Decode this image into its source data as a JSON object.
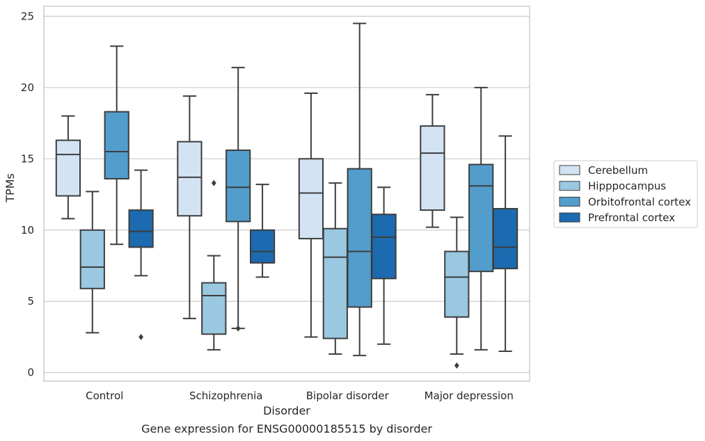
{
  "chart_data": {
    "type": "box",
    "title": "Gene expression for ENSG00000185515 by disorder",
    "xlabel": "Disorder",
    "ylabel": "TPMs",
    "ylim": [
      -0.6,
      25.7
    ],
    "yticks": [
      0,
      5,
      10,
      15,
      20,
      25
    ],
    "grid": true,
    "legend_position": "right",
    "categories": [
      "Control",
      "Schizophrenia",
      "Bipolar disorder",
      "Major depression"
    ],
    "series": [
      {
        "name": "Cerebellum",
        "color": "#d3e3f3",
        "boxes": [
          {
            "whislo": 10.8,
            "q1": 12.4,
            "med": 15.3,
            "q3": 16.3,
            "whishi": 18.0,
            "fliers": []
          },
          {
            "whislo": 3.8,
            "q1": 11.0,
            "med": 13.7,
            "q3": 16.2,
            "whishi": 19.4,
            "fliers": []
          },
          {
            "whislo": 2.5,
            "q1": 9.4,
            "med": 12.6,
            "q3": 15.0,
            "whishi": 19.6,
            "fliers": []
          },
          {
            "whislo": 10.2,
            "q1": 11.4,
            "med": 15.4,
            "q3": 17.3,
            "whishi": 19.5,
            "fliers": []
          }
        ]
      },
      {
        "name": "Hipppocampus",
        "color": "#9ac8e0",
        "boxes": [
          {
            "whislo": 2.8,
            "q1": 5.9,
            "med": 7.4,
            "q3": 10.0,
            "whishi": 12.7,
            "fliers": []
          },
          {
            "whislo": 1.6,
            "q1": 2.7,
            "med": 5.4,
            "q3": 6.3,
            "whishi": 8.2,
            "fliers": [
              13.3
            ]
          },
          {
            "whislo": 1.3,
            "q1": 2.4,
            "med": 8.1,
            "q3": 10.1,
            "whishi": 13.3,
            "fliers": []
          },
          {
            "whislo": 1.3,
            "q1": 3.9,
            "med": 6.7,
            "q3": 8.5,
            "whishi": 10.9,
            "fliers": [
              0.5
            ]
          }
        ]
      },
      {
        "name": "Orbitofrontal cortex",
        "color": "#529dcc",
        "boxes": [
          {
            "whislo": 9.0,
            "q1": 13.6,
            "med": 15.5,
            "q3": 18.3,
            "whishi": 22.9,
            "fliers": []
          },
          {
            "whislo": 3.1,
            "q1": 10.6,
            "med": 13.0,
            "q3": 15.6,
            "whishi": 21.4,
            "fliers": [
              3.1
            ]
          },
          {
            "whislo": 1.2,
            "q1": 4.6,
            "med": 8.5,
            "q3": 14.3,
            "whishi": 24.5,
            "fliers": []
          },
          {
            "whislo": 1.6,
            "q1": 7.1,
            "med": 13.1,
            "q3": 14.6,
            "whishi": 20.0,
            "fliers": []
          }
        ]
      },
      {
        "name": "Prefrontal cortex",
        "color": "#1c6aaf",
        "boxes": [
          {
            "whislo": 6.8,
            "q1": 8.8,
            "med": 9.9,
            "q3": 11.4,
            "whishi": 14.2,
            "fliers": [
              2.5
            ]
          },
          {
            "whislo": 6.7,
            "q1": 7.7,
            "med": 8.5,
            "q3": 10.0,
            "whishi": 13.2,
            "fliers": []
          },
          {
            "whislo": 2.0,
            "q1": 6.6,
            "med": 9.5,
            "q3": 11.1,
            "whishi": 13.0,
            "fliers": []
          },
          {
            "whislo": 1.5,
            "q1": 7.3,
            "med": 8.8,
            "q3": 11.5,
            "whishi": 16.6,
            "fliers": []
          }
        ]
      }
    ]
  }
}
